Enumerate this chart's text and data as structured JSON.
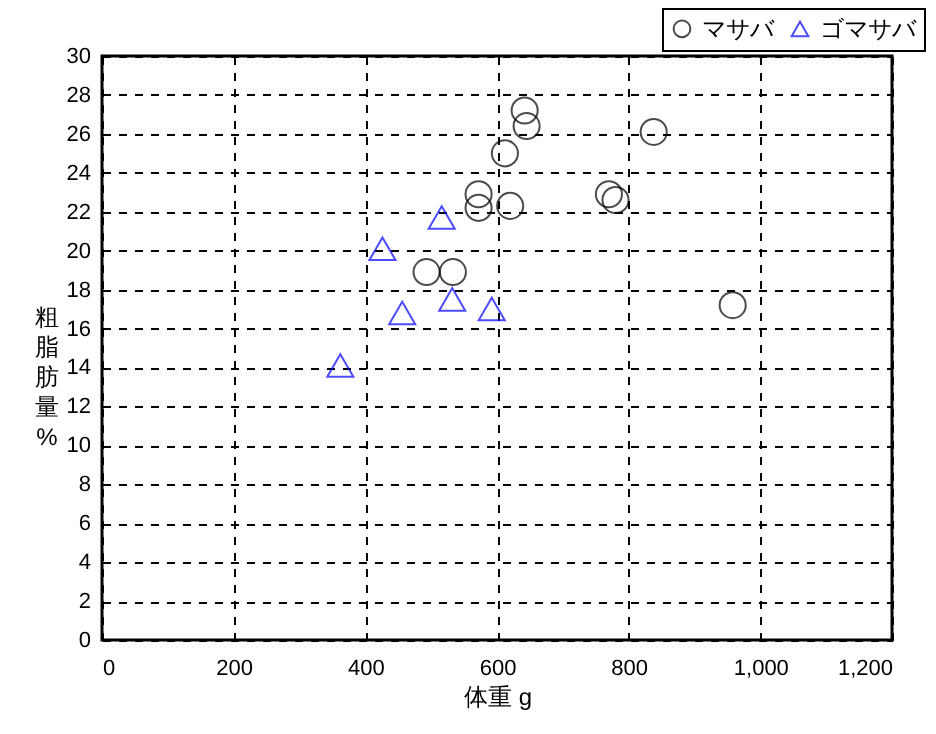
{
  "chart_data": {
    "type": "scatter",
    "xlabel": "体重 g",
    "ylabel": "粗脂肪量%",
    "xlim": [
      0,
      1200
    ],
    "xticks": [
      0,
      200,
      400,
      600,
      800,
      {
        "value": 1000,
        "label": "1,000"
      },
      {
        "value": 1200,
        "label": "1,200"
      }
    ],
    "ylim": [
      0,
      30
    ],
    "yticks": [
      0,
      2,
      4,
      6,
      8,
      10,
      12,
      14,
      16,
      18,
      20,
      22,
      24,
      26,
      28,
      30
    ],
    "grid": true,
    "legend": "top right",
    "series": [
      {
        "name": "マサバ",
        "color": "#000000",
        "marker": "circle",
        "x": [
          642,
          645,
          838,
          612,
          572,
          572,
          620,
          770,
          780,
          493,
          533,
          958
        ],
        "values": [
          27.2,
          26.4,
          26.1,
          25.0,
          22.9,
          22.2,
          22.3,
          22.9,
          22.6,
          18.9,
          18.9,
          17.2
        ]
      },
      {
        "name": "ゴマサバ",
        "color": "#0000ff",
        "marker": "triangle",
        "x": [
          426,
          516,
          456,
          532,
          592,
          362
        ],
        "values": [
          20.1,
          21.7,
          16.8,
          17.5,
          17.0,
          14.1
        ]
      }
    ]
  }
}
